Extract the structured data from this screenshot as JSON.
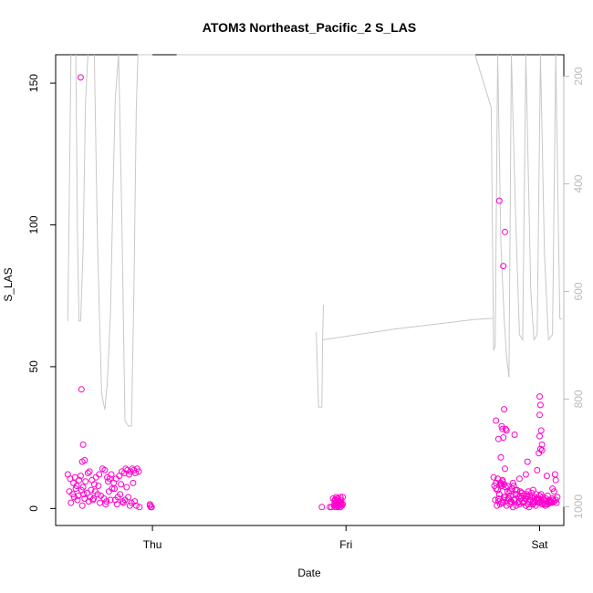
{
  "chart_data": {
    "type": "scatter",
    "title": "ATOM3 Northeast_Pacific_2 S_LAS",
    "xlabel": "Date",
    "ylabel": "S_LAS",
    "x_ticks": [
      "Thu",
      "Fri",
      "Sat"
    ],
    "ylim": [
      -6,
      160
    ],
    "y_ticks": [
      0,
      50,
      100,
      150
    ],
    "y2_ticks": [
      200,
      400,
      600,
      800,
      1000
    ],
    "y2_range": [
      1035,
      160
    ],
    "xlim_hours": [
      -12,
      51
    ],
    "point_color": "#ff00cc",
    "line_color": "#c8c8c8",
    "series": [
      {
        "type": "points",
        "x_hours": [
          -10.5,
          -10.2,
          -9.8,
          -9.6,
          -9.4,
          -9.1,
          -8.9,
          -8.6,
          -8.3,
          -8.0,
          -7.8,
          -7.5,
          -7.2,
          -7.0,
          -6.6,
          -6.2,
          -5.9,
          -5.6,
          -5.3,
          -5.1,
          -4.8,
          -4.5,
          -4.1,
          -3.8,
          -3.5,
          -3.3,
          -3.1,
          -2.9,
          -2.7,
          -2.5,
          -2.3,
          -2.1,
          -1.9,
          -1.7,
          -10.3,
          -9.9,
          -9.5,
          -9.2,
          -8.8,
          -8.4,
          -8.1,
          -7.7,
          -7.4,
          -7.1,
          -6.8,
          -6.4,
          -6.0,
          -5.7,
          -5.4,
          -5.0,
          -4.6,
          -4.3,
          -4.0,
          -3.7,
          -3.4,
          -3.0,
          -2.6,
          -2.2,
          -10.1,
          -9.3,
          -8.7,
          -7.9,
          -7.3,
          -6.5,
          -5.8,
          -5.2,
          -4.4,
          -3.6,
          -2.8,
          -2.0,
          -1.6,
          -9.7,
          -8.5,
          -7.6,
          -6.7,
          -5.5,
          -4.7,
          -3.9,
          -3.2,
          -2.4,
          -8.9,
          -8.8,
          -8.6,
          -8.4,
          -8.7,
          -0.3,
          -0.2,
          -0.3,
          -0.1,
          22.4,
          22.6,
          22.8,
          23.0,
          23.2,
          23.4,
          23.6,
          22.5,
          22.7,
          22.9,
          23.1,
          23.3,
          23.5,
          22.6,
          22.8,
          23.0,
          23.2,
          23.4,
          22.7,
          22.9,
          23.1,
          23.3,
          22.8,
          23.0,
          23.2,
          21.0,
          23.0,
          23.6,
          22.0,
          22.6,
          23.4,
          22.2,
          23.2,
          42.4,
          42.6,
          42.8,
          43.0,
          43.2,
          43.4,
          43.6,
          43.8,
          44.0,
          44.2,
          44.4,
          44.6,
          44.8,
          45.0,
          45.2,
          45.4,
          45.6,
          45.8,
          46.0,
          46.2,
          46.4,
          46.6,
          46.8,
          47.0,
          47.2,
          47.4,
          47.6,
          47.8,
          48.0,
          48.2,
          48.4,
          48.6,
          48.8,
          49.0,
          49.2,
          49.4,
          49.6,
          49.8,
          50.0,
          50.2,
          42.5,
          42.9,
          43.3,
          43.7,
          44.1,
          44.5,
          44.9,
          45.3,
          45.7,
          46.1,
          46.5,
          46.9,
          47.3,
          47.7,
          48.1,
          48.5,
          48.9,
          49.3,
          49.7,
          50.1,
          42.7,
          43.1,
          43.5,
          43.9,
          44.3,
          44.7,
          45.1,
          45.5,
          45.9,
          46.3,
          46.7,
          47.1,
          47.5,
          47.9,
          48.3,
          48.7,
          49.1,
          49.5,
          49.9,
          42.3,
          42.8,
          43.4,
          44.0,
          44.6,
          45.2,
          45.8,
          46.4,
          47.0,
          47.6,
          48.2,
          48.8,
          49.4,
          50.0,
          42.6,
          43.2,
          43.8,
          44.4,
          45.0,
          45.6,
          46.2,
          46.8,
          47.4,
          48.0,
          48.6,
          49.2,
          49.8,
          43.0,
          43.6,
          44.2,
          44.8,
          45.4,
          46.0,
          46.6,
          47.2,
          47.8,
          48.4,
          49.0,
          49.6,
          43.3,
          44.7,
          45.5,
          46.3,
          47.7,
          48.5,
          42.9,
          43.5,
          44.4,
          46.0,
          47.2,
          48.9,
          43.1,
          43.7,
          46.5,
          47.9,
          48.1,
          48.3,
          48.0,
          42.6,
          43.4,
          43.6,
          43.9,
          42.9,
          43.5,
          43.2,
          43.8,
          43.3,
          44.9,
          48.2,
          48.0,
          48.3,
          48.1,
          48.0,
          43.0,
          43.7,
          43.5
        ],
        "values": [
          12.0,
          10.5,
          9.0,
          11.0,
          8.0,
          10.0,
          11.5,
          7.5,
          9.5,
          12.5,
          13.0,
          10.0,
          8.5,
          11.0,
          12.0,
          14.0,
          13.5,
          11.0,
          10.5,
          12.0,
          9.0,
          10.5,
          11.5,
          13.0,
          12.5,
          14.0,
          13.5,
          12.0,
          13.0,
          14.0,
          13.5,
          12.5,
          14.0,
          13.0,
          6.0,
          5.0,
          7.0,
          4.5,
          6.5,
          3.5,
          5.5,
          4.0,
          3.0,
          6.0,
          5.0,
          4.5,
          3.5,
          2.5,
          6.0,
          7.0,
          3.0,
          4.0,
          5.0,
          2.5,
          3.0,
          4.0,
          2.0,
          2.5,
          2.0,
          3.0,
          1.0,
          2.5,
          3.5,
          2.0,
          1.5,
          3.0,
          1.5,
          2.0,
          1.0,
          1.0,
          0.5,
          4.0,
          5.0,
          6.5,
          8.0,
          9.5,
          7.0,
          8.5,
          7.5,
          9.0,
          152.0,
          42.0,
          22.5,
          17.0,
          16.5,
          1.5,
          0.5,
          1.0,
          0.5,
          3.5,
          3.0,
          4.0,
          3.5,
          2.5,
          3.0,
          4.0,
          1.0,
          0.5,
          1.5,
          1.0,
          0.5,
          1.0,
          2.0,
          1.5,
          2.5,
          2.0,
          1.5,
          3.0,
          3.5,
          2.5,
          4.0,
          1.0,
          0.5,
          1.5,
          0.5,
          1.0,
          1.5,
          0.5,
          1.0,
          2.0,
          0.5,
          1.0,
          8.0,
          7.0,
          6.5,
          5.0,
          9.0,
          10.0,
          8.5,
          7.5,
          6.0,
          5.5,
          4.5,
          7.0,
          8.0,
          6.5,
          5.0,
          4.0,
          6.0,
          5.5,
          4.5,
          3.5,
          5.0,
          6.0,
          4.5,
          5.5,
          6.5,
          4.0,
          5.0,
          3.5,
          4.5,
          5.0,
          4.0,
          3.0,
          3.5,
          4.5,
          3.0,
          2.5,
          3.5,
          2.5,
          3.0,
          4.0,
          3.0,
          2.5,
          2.0,
          4.0,
          3.5,
          2.5,
          3.0,
          2.0,
          3.5,
          2.5,
          4.0,
          3.0,
          2.0,
          3.5,
          2.5,
          3.0,
          2.0,
          2.5,
          3.0,
          2.0,
          1.0,
          1.5,
          2.0,
          1.0,
          1.5,
          0.5,
          1.0,
          1.5,
          2.0,
          1.0,
          0.5,
          1.5,
          1.0,
          2.0,
          1.5,
          1.0,
          2.5,
          2.0,
          12.0,
          11.0,
          10.5,
          9.5,
          8.0,
          7.0,
          6.5,
          5.5,
          4.5,
          4.0,
          3.5,
          3.0,
          2.5,
          2.0,
          10.0,
          9.0,
          8.5,
          7.5,
          6.0,
          5.0,
          4.5,
          3.5,
          3.0,
          2.5,
          2.0,
          1.5,
          2.0,
          6.0,
          5.0,
          4.0,
          3.5,
          3.0,
          2.5,
          2.0,
          1.5,
          2.5,
          3.0,
          2.0,
          1.5,
          7.0,
          8.0,
          9.0,
          10.5,
          12.0,
          13.5,
          3.0,
          3.5,
          3.0,
          2.5,
          2.0,
          1.5,
          11.5,
          9.0,
          14.0,
          16.5,
          19.5,
          21.0,
          22.5,
          33.0,
          31.0,
          28.0,
          35.0,
          27.5,
          24.5,
          25.0,
          18.0,
          28.0,
          29.0,
          26.0,
          27.5,
          25.5,
          20.5,
          36.5,
          39.5,
          108.5,
          97.5,
          85.5
        ]
      },
      {
        "type": "line",
        "axis": "right",
        "segments": [
          [
            [
              -10.5,
              655
            ],
            [
              -10.3,
              420
            ],
            [
              -10.1,
              160
            ]
          ],
          [
            [
              -9.5,
              160
            ],
            [
              -9.3,
              490
            ],
            [
              -9.1,
              655
            ],
            [
              -8.9,
              655
            ],
            [
              -8.6,
              520
            ],
            [
              -8.3,
              250
            ],
            [
              -8.0,
              160
            ]
          ],
          [
            [
              -7.2,
              160
            ],
            [
              -6.8,
              520
            ],
            [
              -6.3,
              790
            ],
            [
              -5.9,
              820
            ],
            [
              -5.6,
              770
            ],
            [
              -5.2,
              640
            ],
            [
              -4.9,
              420
            ],
            [
              -4.6,
              240
            ],
            [
              -4.2,
              160
            ]
          ],
          [
            [
              -4.2,
              160
            ],
            [
              -3.8,
              460
            ],
            [
              -3.4,
              840
            ],
            [
              -3.0,
              850
            ],
            [
              -2.6,
              850
            ],
            [
              -2.3,
              600
            ],
            [
              -2.0,
              260
            ],
            [
              -1.8,
              160
            ]
          ],
          [
            [
              -1.8,
              160
            ],
            [
              0.0,
              160
            ]
          ],
          [
            [
              3.0,
              160
            ],
            [
              8.0,
              160
            ],
            [
              16.0,
              160
            ],
            [
              24.0,
              160
            ],
            [
              32.0,
              160
            ],
            [
              40.0,
              160
            ],
            [
              42.0,
              258
            ]
          ],
          [
            [
              20.3,
              675
            ],
            [
              20.6,
              815
            ],
            [
              21.0,
              815
            ],
            [
              21.1,
              690
            ],
            [
              21.2,
              625
            ]
          ],
          [
            [
              21.1,
              690
            ],
            [
              30.0,
              670
            ],
            [
              40.0,
              652
            ],
            [
              42.2,
              650
            ]
          ],
          [
            [
              42.0,
              258
            ],
            [
              42.3,
              710
            ],
            [
              42.5,
              700
            ],
            [
              42.8,
              160
            ]
          ],
          [
            [
              42.8,
              160
            ],
            [
              43.2,
              510
            ],
            [
              43.6,
              650
            ],
            [
              43.9,
              720
            ],
            [
              44.2,
              760
            ],
            [
              44.5,
              160
            ]
          ],
          [
            [
              44.5,
              160
            ],
            [
              45.0,
              450
            ],
            [
              45.5,
              680
            ],
            [
              45.9,
              690
            ],
            [
              46.3,
              160
            ]
          ],
          [
            [
              46.3,
              160
            ],
            [
              46.9,
              600
            ],
            [
              47.3,
              690
            ],
            [
              47.7,
              680
            ],
            [
              48.1,
              160
            ]
          ],
          [
            [
              48.1,
              160
            ],
            [
              48.6,
              530
            ],
            [
              49.1,
              690
            ],
            [
              49.6,
              680
            ],
            [
              50.0,
              160
            ]
          ],
          [
            [
              50.0,
              160
            ],
            [
              50.5,
              650
            ],
            [
              50.8,
              652
            ]
          ]
        ]
      }
    ]
  }
}
